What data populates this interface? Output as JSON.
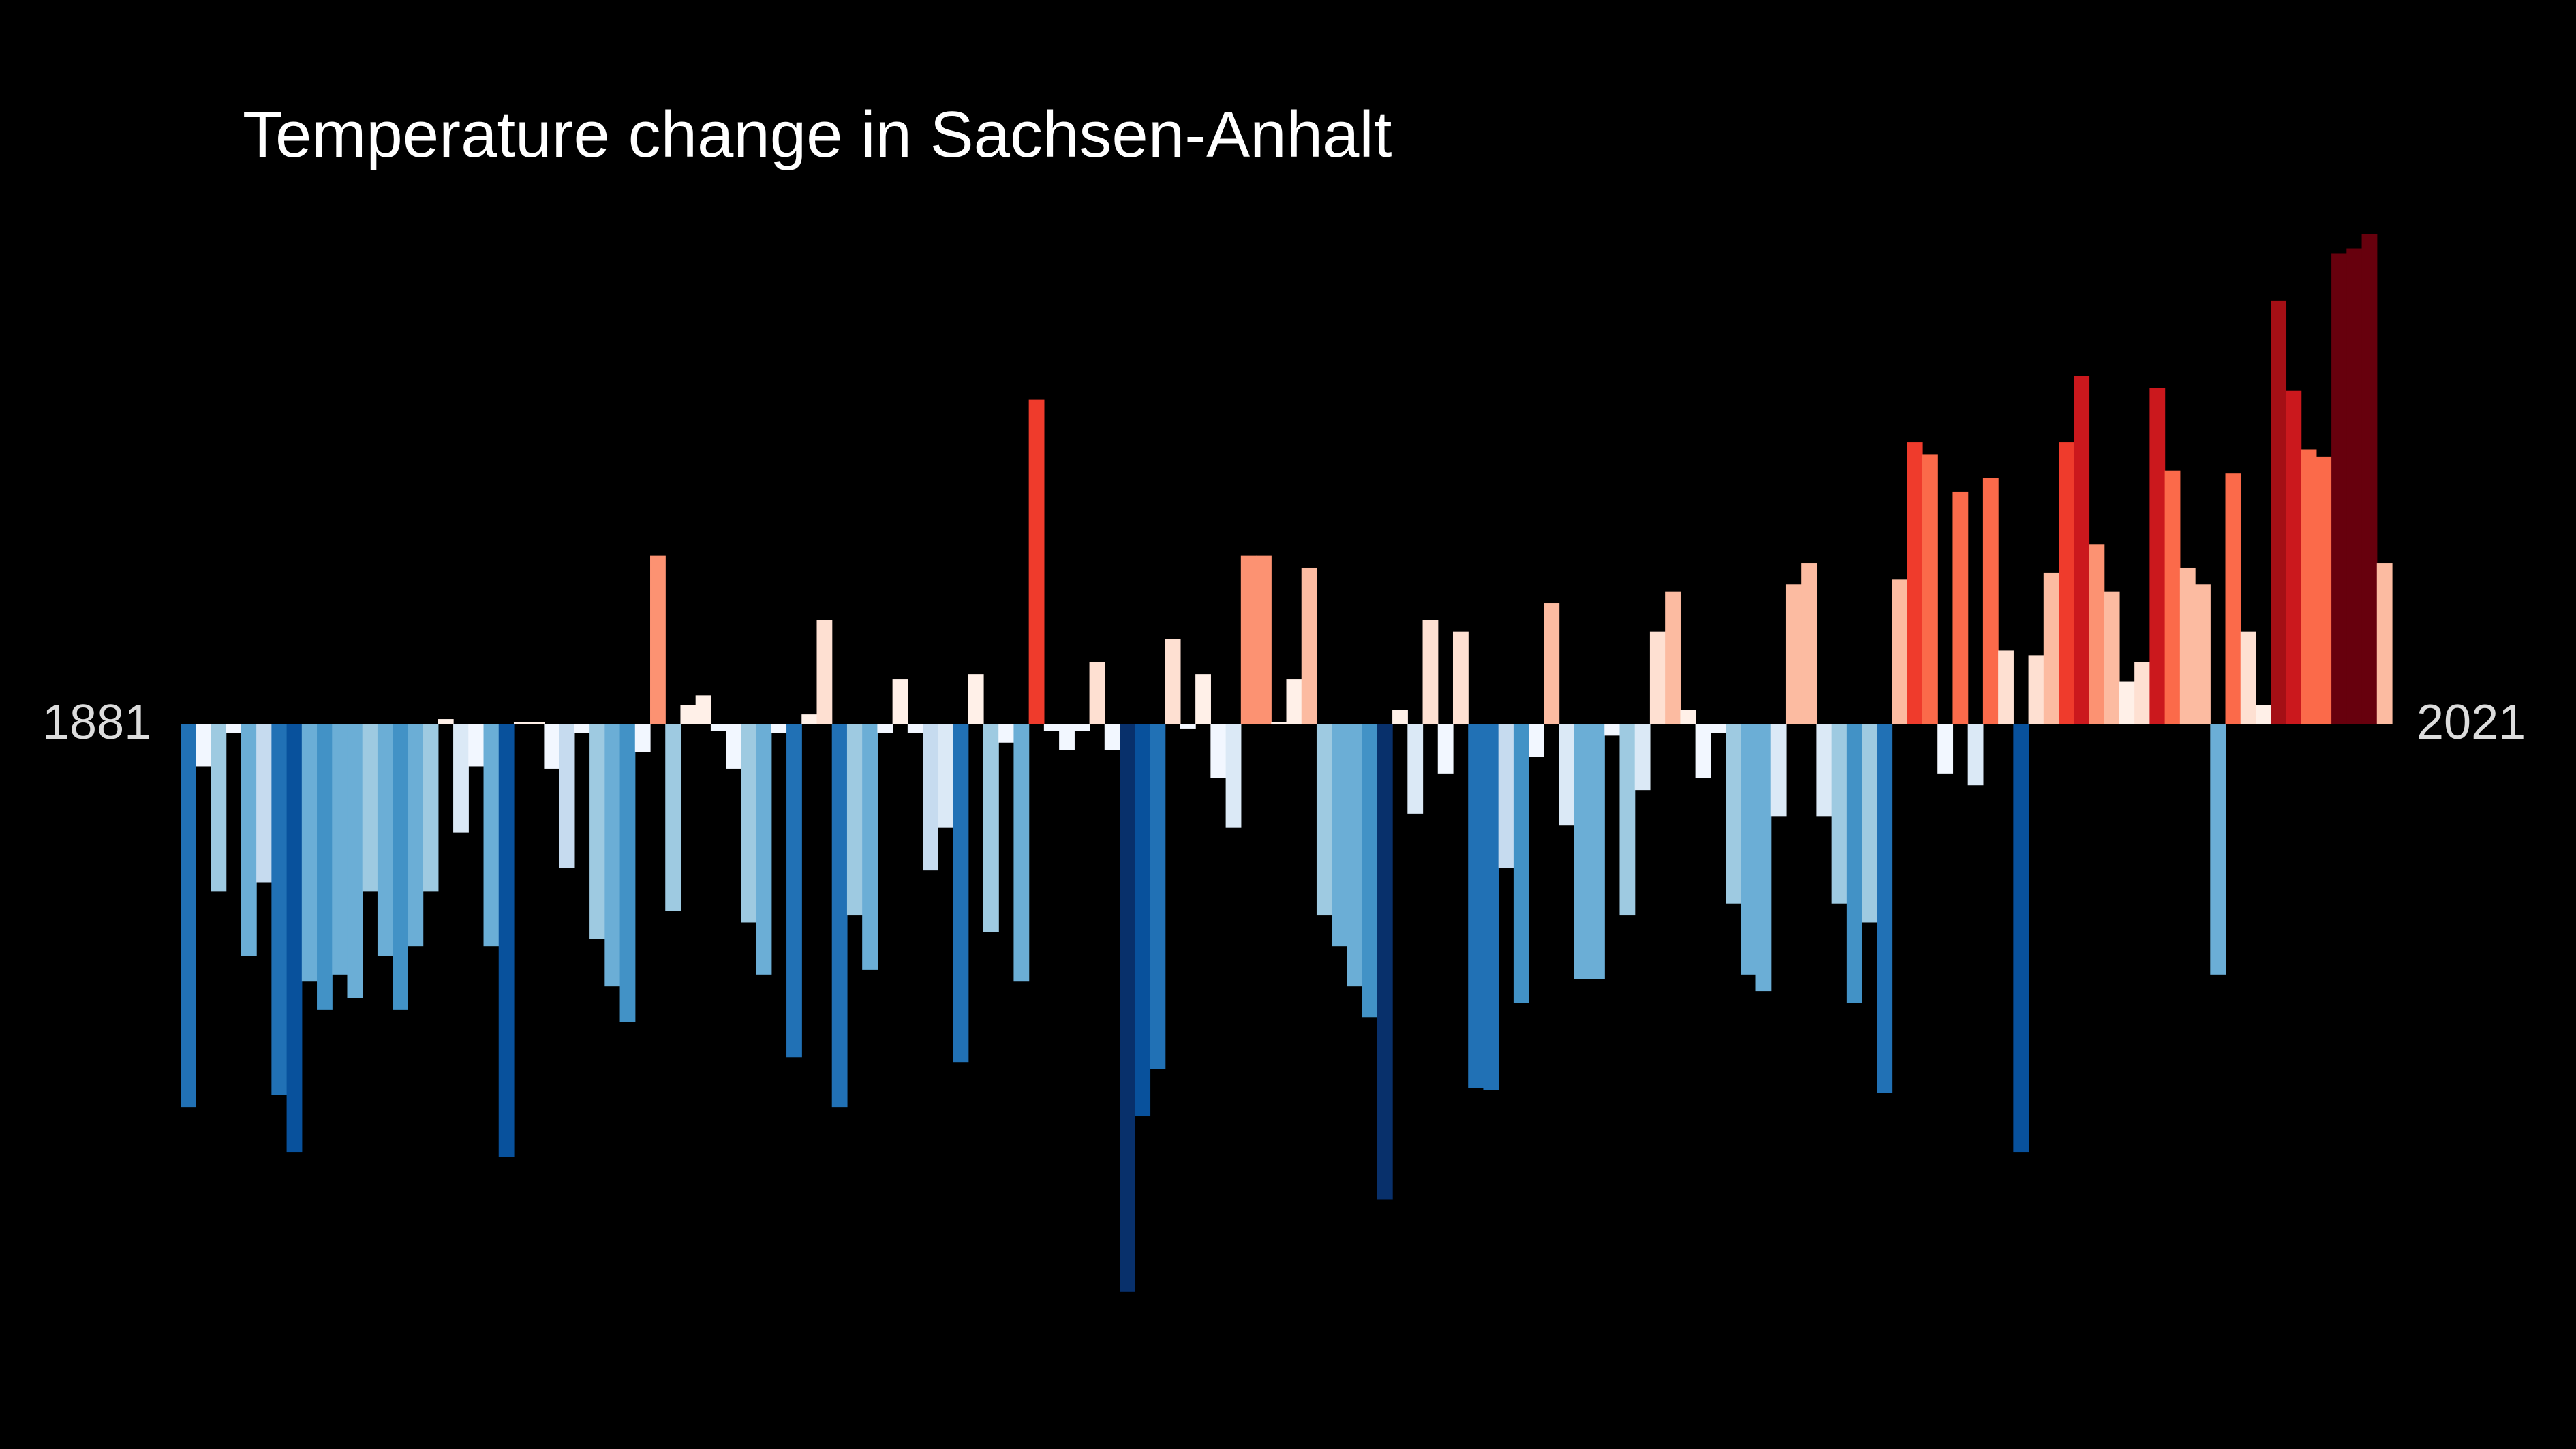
{
  "chart_data": {
    "type": "bar",
    "title": "Temperature change in Sachsen-Anhalt",
    "xlabel": "",
    "ylabel": "",
    "start_label": "1881",
    "end_label": "2021",
    "x_start": 1881,
    "x_end": 2021,
    "ylim": [
      -2.4,
      2.12
    ],
    "grid": false,
    "legend": "none",
    "background": "#000000",
    "palette_note": "diverging blue-red by anomaly",
    "values": [
      -1.62,
      -0.18,
      -0.71,
      -0.04,
      -0.98,
      -0.67,
      -1.57,
      -1.81,
      -1.09,
      -1.21,
      -1.06,
      -1.16,
      -0.71,
      -0.98,
      -1.21,
      -0.94,
      -0.71,
      0.02,
      -0.46,
      -0.18,
      -0.94,
      -1.83,
      0.0,
      0.0,
      -0.19,
      -0.61,
      -0.04,
      -0.91,
      -1.11,
      -1.26,
      -0.12,
      0.71,
      -0.79,
      0.08,
      0.12,
      -0.03,
      -0.19,
      -0.84,
      -1.06,
      -0.04,
      -1.41,
      0.04,
      0.44,
      -1.62,
      -0.81,
      -1.04,
      -0.04,
      0.19,
      -0.04,
      -0.62,
      -0.44,
      -1.43,
      0.21,
      -0.88,
      -0.08,
      -1.09,
      1.37,
      -0.03,
      -0.11,
      -0.03,
      0.26,
      -0.11,
      -2.4,
      -1.66,
      -1.46,
      0.36,
      -0.02,
      0.21,
      -0.23,
      -0.44,
      0.71,
      0.71,
      0.0,
      0.19,
      0.66,
      -0.81,
      -0.94,
      -1.11,
      -1.24,
      -2.01,
      0.06,
      -0.38,
      0.44,
      -0.21,
      0.39,
      -1.54,
      -1.55,
      -0.61,
      -1.18,
      -0.14,
      0.51,
      -0.43,
      -1.08,
      -1.08,
      -0.05,
      -0.81,
      -0.28,
      0.39,
      0.56,
      0.06,
      -0.23,
      -0.04,
      -0.76,
      -1.06,
      -1.13,
      -0.39,
      0.59,
      0.68,
      -0.39,
      -0.76,
      -1.18,
      -0.84,
      -1.56,
      0.61,
      1.19,
      1.14,
      -0.21,
      0.98,
      -0.26,
      1.04,
      0.31,
      -1.81,
      0.29,
      0.64,
      1.19,
      1.47,
      0.76,
      0.56,
      0.18,
      0.26,
      1.42,
      1.07,
      0.66,
      0.59,
      -1.06,
      1.06,
      0.39,
      0.08,
      1.79,
      1.41,
      1.16,
      1.13,
      1.99,
      2.01,
      2.07,
      0.68
    ]
  }
}
